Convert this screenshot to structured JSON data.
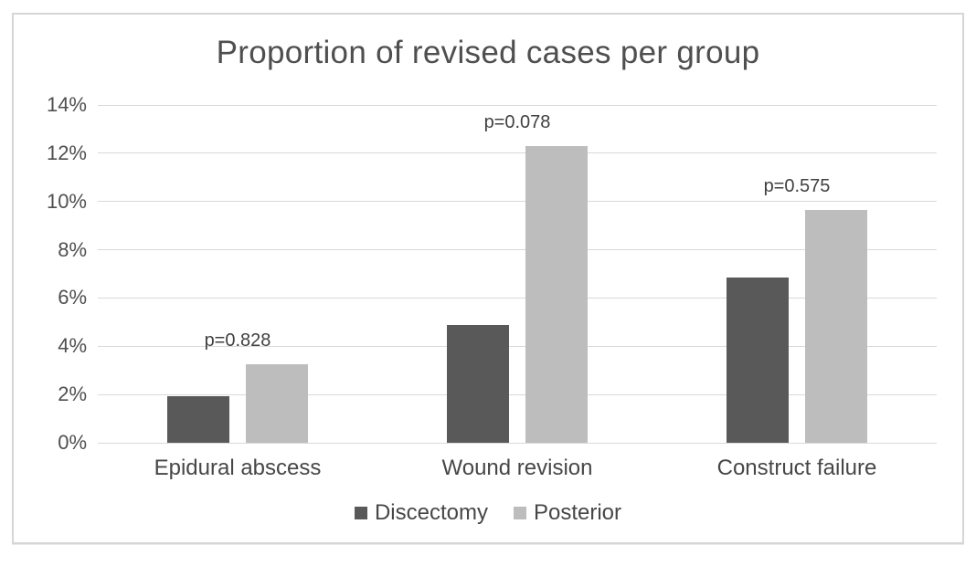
{
  "chart_data": {
    "type": "bar",
    "title": "Proportion of revised cases per group",
    "xlabel": "",
    "ylabel": "",
    "categories": [
      "Epidural abscess",
      "Wound revision",
      "Construct failure"
    ],
    "series": [
      {
        "name": "Discectomy",
        "color": "#595959",
        "values": [
          1.95,
          4.9,
          6.85
        ]
      },
      {
        "name": "Posterior",
        "color": "#bdbdbd",
        "values": [
          3.25,
          12.3,
          9.65
        ]
      }
    ],
    "annotations": [
      {
        "category": "Epidural abscess",
        "label": "p=0.828"
      },
      {
        "category": "Wound revision",
        "label": "p=0.078"
      },
      {
        "category": "Construct failure",
        "label": "p=0.575"
      }
    ],
    "ylim": [
      0,
      14
    ],
    "ytick_step": 2,
    "ytick_labels": [
      "0%",
      "2%",
      "4%",
      "6%",
      "8%",
      "10%",
      "12%",
      "14%"
    ],
    "grid": true,
    "legend_position": "bottom",
    "styles": {
      "grid_color": "#d9d9d9",
      "text_color": "#4f4f4f",
      "frame_border_color": "#d6d6d6",
      "background": "#ffffff"
    }
  }
}
